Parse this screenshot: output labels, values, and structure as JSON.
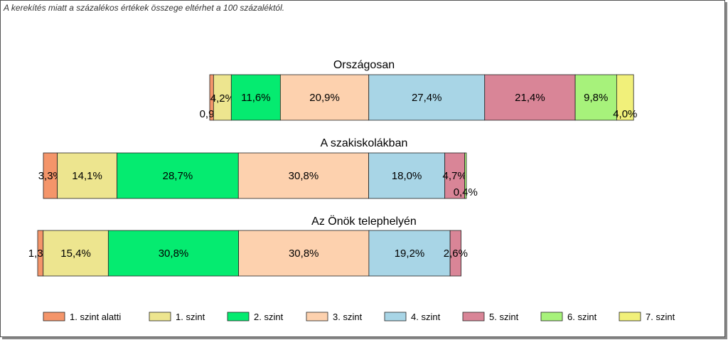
{
  "note": "A kerekítés miatt a  százalékos értékek összege eltérhet a 100 százaléktól.",
  "chart_data": {
    "type": "bar",
    "orientation": "horizontal",
    "stacked": true,
    "unit": "%",
    "categories": [
      "Országosan",
      "A szakiskolákban",
      "Az Önök telephelyén"
    ],
    "series": [
      {
        "name": "1. szint alatti",
        "color": "#f4956a",
        "values": [
          0.9,
          3.3,
          1.3
        ],
        "labels": [
          "0,9%",
          "3,3%",
          "1,3%"
        ]
      },
      {
        "name": "1. szint",
        "color": "#ede58f",
        "values": [
          4.2,
          14.1,
          15.4
        ],
        "labels": [
          "4,2%",
          "14,1%",
          "15,4%"
        ]
      },
      {
        "name": "2. szint",
        "color": "#05eb70",
        "values": [
          11.6,
          28.7,
          30.8
        ],
        "labels": [
          "11,6%",
          "28,7%",
          "30,8%"
        ]
      },
      {
        "name": "3. szint",
        "color": "#fdd1ae",
        "values": [
          20.9,
          30.8,
          30.8
        ],
        "labels": [
          "20,9%",
          "30,8%",
          "30,8%"
        ]
      },
      {
        "name": "4. szint",
        "color": "#a8d5e6",
        "values": [
          27.4,
          18.0,
          19.2
        ],
        "labels": [
          "27,4%",
          "18,0%",
          "19,2%"
        ]
      },
      {
        "name": "5. szint",
        "color": "#d98597",
        "values": [
          21.4,
          4.7,
          2.6
        ],
        "labels": [
          "21,4%",
          "4,7%",
          "2,6%"
        ]
      },
      {
        "name": "6. szint",
        "color": "#a7f27b",
        "values": [
          9.8,
          0.4,
          0
        ],
        "labels": [
          "9,8%",
          "0,4%",
          ""
        ]
      },
      {
        "name": "7. szint",
        "color": "#f1f07a",
        "values": [
          4.0,
          0,
          0
        ],
        "labels": [
          "4,0%",
          "",
          ""
        ]
      }
    ],
    "legend_position": "bottom",
    "grid": false
  }
}
